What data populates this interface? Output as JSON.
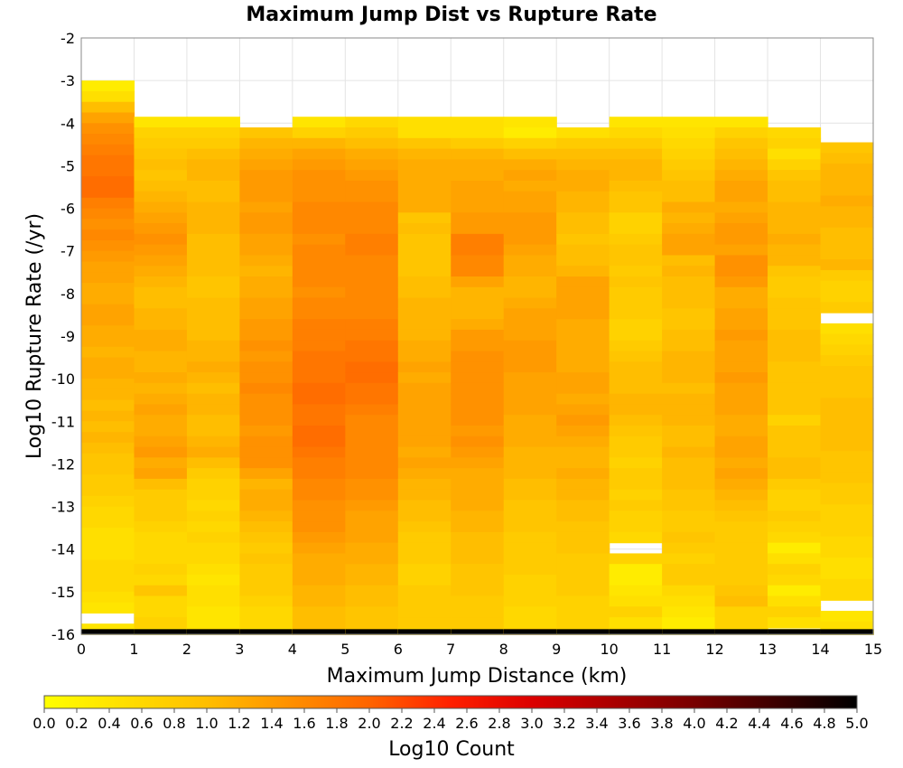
{
  "chart_data": {
    "type": "heatmap",
    "title": "Maximum Jump Dist vs Rupture Rate",
    "xlabel": "Maximum Jump Distance (km)",
    "ylabel": "Log10 Rupture Rate (/yr)",
    "xlim": [
      0,
      15
    ],
    "ylim": [
      -16,
      -2
    ],
    "x_ticks": [
      0,
      1,
      2,
      3,
      4,
      5,
      6,
      7,
      8,
      9,
      10,
      11,
      12,
      13,
      14,
      15
    ],
    "y_ticks": [
      -2,
      -3,
      -4,
      -5,
      -6,
      -7,
      -8,
      -9,
      -10,
      -11,
      -12,
      -13,
      -14,
      -15,
      -16
    ],
    "x_bin_width": 1,
    "y_bin_height": 0.25,
    "columns": [
      {
        "x_start": 0,
        "y_top": -3.0,
        "values": [
          0.3,
          0.5,
          1.0,
          1.3,
          1.5,
          1.6,
          1.7,
          1.8,
          1.8,
          1.9,
          1.9,
          1.7,
          1.6,
          1.5,
          1.6,
          1.5,
          1.4,
          1.3,
          1.3,
          1.2,
          1.2,
          1.3,
          1.3,
          1.2,
          1.2,
          1.1,
          1.2,
          1.2,
          1.1,
          1.1,
          1.0,
          1.1,
          1.0,
          1.1,
          1.0,
          0.9,
          0.9,
          0.8,
          0.8,
          0.7,
          0.6,
          0.6,
          0.5,
          0.5,
          0.5,
          0.6,
          0.6,
          0.6,
          0.5,
          0.4,
          null,
          0.4,
          0.6,
          5.0
        ]
      },
      {
        "x_start": 1,
        "y_top": -3.85,
        "values": [
          0.4,
          0.7,
          0.8,
          0.9,
          1.0,
          0.9,
          1.0,
          1.1,
          1.2,
          1.3,
          1.4,
          1.5,
          1.4,
          1.3,
          1.2,
          1.1,
          1.0,
          1.0,
          1.1,
          1.1,
          1.2,
          1.2,
          1.1,
          1.1,
          1.2,
          1.1,
          1.2,
          1.3,
          1.2,
          1.2,
          1.3,
          1.4,
          1.2,
          1.3,
          1.0,
          0.8,
          0.8,
          0.8,
          0.7,
          0.6,
          0.6,
          0.6,
          0.7,
          0.6,
          0.9,
          0.6,
          0.6,
          0.7,
          0.6,
          0.5,
          0.3,
          0.3,
          5.0
        ]
      },
      {
        "x_start": 2,
        "y_top": -3.85,
        "values": [
          0.4,
          0.7,
          0.8,
          1.0,
          1.1,
          1.1,
          1.0,
          1.0,
          1.1,
          1.1,
          1.1,
          1.0,
          1.0,
          1.0,
          1.0,
          0.9,
          0.9,
          1.0,
          1.0,
          1.0,
          1.0,
          1.1,
          1.1,
          1.2,
          1.1,
          1.0,
          1.1,
          1.1,
          1.0,
          1.0,
          1.1,
          1.2,
          1.0,
          0.8,
          0.7,
          0.7,
          0.6,
          0.7,
          0.6,
          0.7,
          0.6,
          0.6,
          0.5,
          0.4,
          0.5,
          0.5,
          0.4,
          0.4,
          0.5,
          0.5,
          0.6,
          null,
          5.0
        ]
      },
      {
        "x_start": 3,
        "y_top": -4.1,
        "values": [
          0.9,
          1.1,
          1.2,
          1.3,
          1.4,
          1.4,
          1.4,
          1.3,
          1.4,
          1.4,
          1.3,
          1.3,
          1.2,
          1.1,
          1.2,
          1.2,
          1.3,
          1.3,
          1.4,
          1.4,
          1.5,
          1.4,
          1.5,
          1.5,
          1.6,
          1.5,
          1.5,
          1.5,
          1.4,
          1.5,
          1.5,
          1.5,
          1.3,
          1.1,
          1.2,
          1.2,
          1.1,
          1.0,
          0.9,
          0.8,
          0.9,
          0.8,
          0.8,
          0.8,
          0.7,
          0.6,
          0.6,
          0.5,
          0.6,
          0.6,
          null,
          5.0
        ]
      },
      {
        "x_start": 4,
        "y_top": -3.85,
        "values": [
          0.4,
          0.7,
          1.1,
          1.3,
          1.4,
          1.5,
          1.5,
          1.5,
          1.6,
          1.6,
          1.6,
          1.5,
          1.6,
          1.6,
          1.6,
          1.6,
          1.5,
          1.6,
          1.6,
          1.7,
          1.7,
          1.7,
          1.8,
          1.8,
          1.8,
          1.9,
          1.9,
          1.8,
          1.8,
          1.9,
          1.9,
          1.8,
          1.7,
          1.7,
          1.6,
          1.6,
          1.5,
          1.5,
          1.5,
          1.4,
          1.3,
          1.2,
          1.2,
          1.2,
          1.1,
          1.1,
          1.0,
          1.0,
          1.0,
          0.9,
          0.9,
          0.9,
          5.0
        ]
      },
      {
        "x_start": 5,
        "y_top": -3.85,
        "values": [
          0.6,
          0.8,
          1.0,
          1.2,
          1.3,
          1.4,
          1.5,
          1.5,
          1.6,
          1.6,
          1.6,
          1.7,
          1.7,
          1.6,
          1.6,
          1.6,
          1.6,
          1.6,
          1.6,
          1.7,
          1.7,
          1.8,
          1.8,
          1.9,
          1.9,
          1.8,
          1.8,
          1.7,
          1.6,
          1.6,
          1.6,
          1.6,
          1.6,
          1.6,
          1.5,
          1.5,
          1.4,
          1.3,
          1.3,
          1.3,
          1.2,
          1.2,
          1.1,
          1.1,
          1.0,
          1.0,
          0.9,
          0.9,
          0.9,
          0.9,
          0.9,
          0.8,
          5.0
        ]
      },
      {
        "x_start": 6,
        "y_top": -3.85,
        "values": [
          0.5,
          0.5,
          0.9,
          1.1,
          1.2,
          1.2,
          1.2,
          1.2,
          1.2,
          0.9,
          1.0,
          0.9,
          0.9,
          0.9,
          0.9,
          1.0,
          1.0,
          1.1,
          1.1,
          1.1,
          1.1,
          1.2,
          1.2,
          1.3,
          1.2,
          1.3,
          1.3,
          1.3,
          1.3,
          1.3,
          1.3,
          1.2,
          1.3,
          1.2,
          1.1,
          1.1,
          1.0,
          1.0,
          0.9,
          0.8,
          0.8,
          0.8,
          0.7,
          0.7,
          0.8,
          0.8,
          0.8,
          0.8,
          0.7,
          0.7,
          0.6,
          0.6,
          5.0
        ]
      },
      {
        "x_start": 7,
        "y_top": -3.85,
        "values": [
          0.5,
          0.5,
          0.8,
          1.1,
          1.2,
          1.2,
          1.3,
          1.3,
          1.3,
          1.4,
          1.4,
          1.7,
          1.7,
          1.6,
          1.6,
          1.3,
          1.1,
          1.1,
          1.1,
          1.2,
          1.4,
          1.4,
          1.5,
          1.5,
          1.5,
          1.5,
          1.5,
          1.5,
          1.5,
          1.4,
          1.5,
          1.4,
          1.3,
          1.2,
          1.2,
          1.2,
          1.2,
          1.1,
          1.1,
          1.0,
          1.0,
          1.0,
          0.9,
          0.9,
          0.9,
          0.8,
          0.8,
          0.8,
          0.8,
          0.8,
          0.6,
          0.6,
          5.0
        ]
      },
      {
        "x_start": 8,
        "y_top": -3.85,
        "values": [
          0.4,
          0.3,
          0.7,
          1.0,
          1.2,
          1.3,
          1.2,
          1.3,
          1.3,
          1.4,
          1.4,
          1.4,
          1.3,
          1.2,
          1.2,
          1.1,
          1.1,
          1.2,
          1.3,
          1.3,
          1.3,
          1.4,
          1.4,
          1.4,
          1.3,
          1.3,
          1.3,
          1.3,
          1.2,
          1.2,
          1.2,
          1.1,
          1.1,
          1.1,
          1.0,
          1.0,
          0.9,
          0.9,
          0.9,
          0.8,
          0.8,
          0.8,
          0.8,
          0.7,
          0.7,
          0.7,
          0.6,
          0.6,
          0.7,
          0.9,
          0.8,
          1.2,
          5.0
        ]
      },
      {
        "x_start": 9,
        "y_top": -4.1,
        "values": [
          0.5,
          0.8,
          1.0,
          1.1,
          1.2,
          1.2,
          1.1,
          1.1,
          1.0,
          1.0,
          0.9,
          1.0,
          1.0,
          1.1,
          1.3,
          1.3,
          1.3,
          1.3,
          1.2,
          1.2,
          1.2,
          1.2,
          1.2,
          1.3,
          1.3,
          1.2,
          1.3,
          1.4,
          1.3,
          1.2,
          1.1,
          1.1,
          1.2,
          1.1,
          1.1,
          1.0,
          1.0,
          0.9,
          0.9,
          0.9,
          0.8,
          0.8,
          0.8,
          0.8,
          0.7,
          0.7,
          0.7,
          0.7,
          0.7,
          0.6,
          0.5,
          5.0
        ]
      },
      {
        "x_start": 10,
        "y_top": -3.85,
        "values": [
          0.4,
          0.6,
          0.8,
          1.0,
          1.1,
          1.1,
          1.0,
          0.9,
          0.9,
          0.7,
          0.7,
          0.8,
          0.9,
          0.9,
          0.8,
          0.9,
          0.8,
          0.8,
          0.8,
          0.7,
          0.7,
          0.8,
          0.9,
          1.0,
          1.0,
          1.0,
          1.1,
          1.1,
          1.0,
          0.9,
          0.8,
          0.8,
          0.7,
          0.8,
          0.8,
          0.7,
          0.8,
          0.7,
          0.7,
          0.6,
          null,
          0.7,
          0.3,
          0.3,
          0.4,
          0.5,
          0.7,
          0.5,
          0.6,
          0.4,
          null,
          0.3,
          5.0
        ]
      },
      {
        "x_start": 11,
        "y_top": -3.85,
        "values": [
          0.4,
          0.5,
          0.6,
          0.7,
          0.8,
          0.9,
          1.0,
          1.0,
          1.2,
          1.1,
          1.2,
          1.3,
          1.3,
          1.0,
          1.1,
          1.0,
          1.0,
          1.0,
          0.9,
          0.9,
          1.0,
          1.0,
          1.1,
          1.1,
          1.1,
          1.0,
          1.1,
          1.1,
          1.1,
          1.0,
          1.0,
          1.1,
          1.0,
          1.0,
          1.0,
          0.9,
          0.9,
          0.8,
          0.8,
          0.9,
          0.8,
          0.7,
          0.8,
          0.8,
          0.6,
          0.5,
          0.4,
          0.3,
          0.3,
          0.5,
          0.6,
          null,
          5.0
        ]
      },
      {
        "x_start": 12,
        "y_top": -3.85,
        "values": [
          0.4,
          0.7,
          0.9,
          1.0,
          1.1,
          1.2,
          1.3,
          1.3,
          1.2,
          1.3,
          1.4,
          1.4,
          1.3,
          1.5,
          1.5,
          1.4,
          1.2,
          1.2,
          1.3,
          1.3,
          1.4,
          1.3,
          1.3,
          1.3,
          1.4,
          1.3,
          1.3,
          1.3,
          1.2,
          1.2,
          1.3,
          1.3,
          1.2,
          1.3,
          1.2,
          1.1,
          1.0,
          0.9,
          0.8,
          0.8,
          0.8,
          0.8,
          0.8,
          0.8,
          0.9,
          1.0,
          0.7,
          0.7,
          0.6,
          0.5,
          null,
          5.0
        ]
      },
      {
        "x_start": 13,
        "y_top": -4.1,
        "values": [
          0.6,
          0.7,
          0.5,
          0.7,
          0.9,
          1.0,
          1.0,
          1.1,
          1.1,
          1.1,
          1.2,
          1.1,
          1.1,
          0.9,
          0.8,
          0.8,
          0.9,
          0.9,
          0.9,
          1.0,
          1.0,
          1.0,
          0.9,
          0.9,
          0.9,
          0.9,
          0.9,
          0.7,
          0.9,
          0.9,
          0.9,
          1.0,
          1.0,
          0.8,
          0.7,
          0.7,
          0.8,
          0.7,
          0.6,
          0.3,
          0.5,
          0.7,
          0.6,
          0.3,
          0.5,
          0.7,
          0.5,
          null,
          0.4,
          0.4,
          0.3,
          null,
          5.0
        ]
      },
      {
        "x_start": 14,
        "y_top": -4.45,
        "values": [
          0.9,
          1.0,
          1.1,
          1.1,
          1.1,
          1.2,
          1.1,
          1.1,
          1.0,
          1.0,
          1.0,
          1.1,
          0.8,
          0.7,
          0.7,
          0.8,
          null,
          0.5,
          0.6,
          0.7,
          0.8,
          0.9,
          0.9,
          0.9,
          1.0,
          1.0,
          1.0,
          1.0,
          1.0,
          0.9,
          0.9,
          0.9,
          0.8,
          0.8,
          0.7,
          0.7,
          0.7,
          0.6,
          0.6,
          0.5,
          0.5,
          0.6,
          0.6,
          null,
          0.4,
          0.5,
          0.5,
          0.5,
          0.4,
          0.5,
          null,
          null,
          0.4,
          5.0
        ]
      }
    ],
    "grid": true,
    "colorbar": {
      "label": "Log10 Count",
      "min": 0.0,
      "max": 5.0,
      "ticks": [
        "0.0",
        "0.2",
        "0.4",
        "0.6",
        "0.8",
        "1.0",
        "1.2",
        "1.4",
        "1.6",
        "1.8",
        "2.0",
        "2.2",
        "2.4",
        "2.6",
        "2.8",
        "3.0",
        "3.2",
        "3.4",
        "3.6",
        "3.8",
        "4.0",
        "4.2",
        "4.4",
        "4.6",
        "4.8",
        "5.0"
      ],
      "colormap": "hot (yellow-orange-red-black)",
      "placement": "bottom"
    }
  }
}
